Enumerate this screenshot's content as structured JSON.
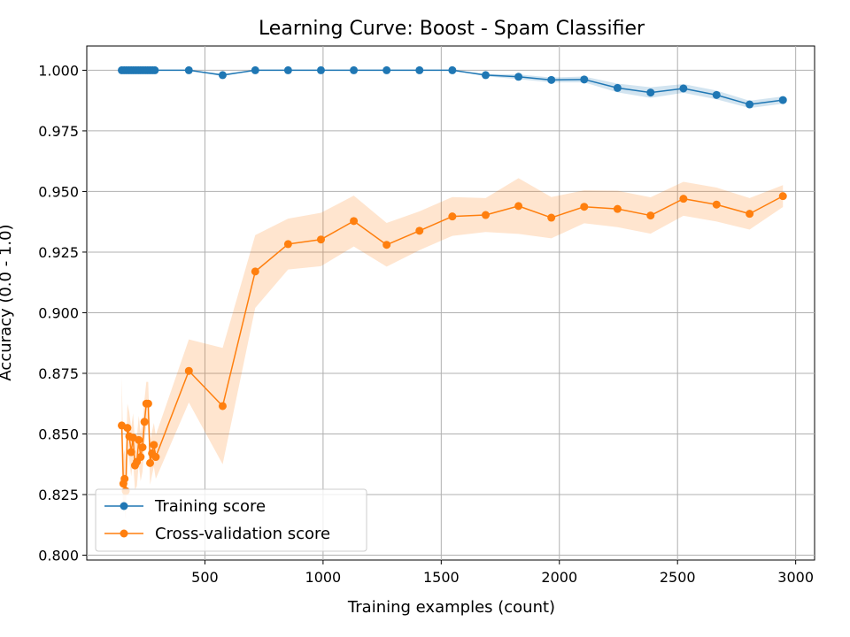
{
  "chart_data": {
    "type": "line",
    "title": "Learning Curve: Boost - Spam Classifier",
    "xlabel": "Training examples (count)",
    "ylabel": "Accuracy (0.0 - 1.0)",
    "xlim": [
      0,
      3080
    ],
    "ylim": [
      0.798,
      1.01
    ],
    "xticks": [
      500,
      1000,
      1500,
      2000,
      2500,
      3000
    ],
    "xtick_labels": [
      "500",
      "1000",
      "1500",
      "2000",
      "2500",
      "3000"
    ],
    "yticks": [
      0.8,
      0.825,
      0.85,
      0.875,
      0.9,
      0.925,
      0.95,
      0.975,
      1.0
    ],
    "ytick_labels": [
      "0.800",
      "0.825",
      "0.850",
      "0.875",
      "0.900",
      "0.925",
      "0.950",
      "0.975",
      "1.000"
    ],
    "grid": true,
    "legend_position": "bottom-left",
    "series": [
      {
        "name": "Training score",
        "color": "#1f77b4",
        "x": [
          148,
          158,
          168,
          178,
          188,
          198,
          208,
          218,
          228,
          238,
          248,
          258,
          268,
          278,
          288,
          432,
          575,
          713,
          852,
          991,
          1130,
          1269,
          1408,
          1547,
          1688,
          1827,
          1966,
          2105,
          2246,
          2386,
          2525,
          2665,
          2805,
          2946
        ],
        "y": [
          1.0,
          1.0,
          1.0,
          1.0,
          1.0,
          1.0,
          1.0,
          1.0,
          1.0,
          1.0,
          1.0,
          1.0,
          1.0,
          1.0,
          1.0,
          1.0,
          0.998,
          1.0,
          1.0,
          1.0,
          1.0,
          1.0,
          1.0,
          1.0,
          0.998,
          0.9973,
          0.996,
          0.9962,
          0.9927,
          0.9908,
          0.9925,
          0.9898,
          0.9859,
          0.9877
        ],
        "y_std": [
          0,
          0,
          0,
          0,
          0,
          0,
          0,
          0,
          0,
          0,
          0,
          0,
          0,
          0,
          0,
          0,
          0.0005,
          0,
          0,
          0,
          0,
          0,
          0,
          0,
          0.0005,
          0.001,
          0.001,
          0.0012,
          0.0018,
          0.0022,
          0.0018,
          0.0018,
          0.0015,
          0.0015
        ]
      },
      {
        "name": "Cross-validation score",
        "color": "#ff7f0e",
        "x": [
          148,
          155,
          160,
          165,
          172,
          180,
          188,
          196,
          204,
          212,
          220,
          228,
          236,
          244,
          252,
          260,
          268,
          276,
          284,
          292,
          432,
          575,
          713,
          852,
          991,
          1130,
          1269,
          1408,
          1547,
          1688,
          1827,
          1966,
          2105,
          2246,
          2386,
          2525,
          2665,
          2805,
          2946
        ],
        "y": [
          0.8535,
          0.8295,
          0.8315,
          0.8265,
          0.8525,
          0.849,
          0.8425,
          0.8485,
          0.837,
          0.8385,
          0.8475,
          0.8405,
          0.8445,
          0.855,
          0.8625,
          0.8625,
          0.838,
          0.842,
          0.8455,
          0.8405,
          0.876,
          0.8615,
          0.917,
          0.9283,
          0.9302,
          0.9378,
          0.928,
          0.9338,
          0.9397,
          0.9403,
          0.944,
          0.9392,
          0.9437,
          0.9428,
          0.9401,
          0.947,
          0.9446,
          0.9408,
          0.9481
        ],
        "y_std": [
          0.02,
          0.012,
          0.012,
          0.012,
          0.01,
          0.01,
          0.01,
          0.01,
          0.01,
          0.01,
          0.01,
          0.01,
          0.01,
          0.009,
          0.009,
          0.009,
          0.009,
          0.009,
          0.009,
          0.009,
          0.013,
          0.024,
          0.015,
          0.0105,
          0.011,
          0.0105,
          0.009,
          0.008,
          0.008,
          0.007,
          0.0115,
          0.0085,
          0.0068,
          0.0075,
          0.0075,
          0.007,
          0.007,
          0.0065,
          0.0045
        ]
      }
    ]
  }
}
